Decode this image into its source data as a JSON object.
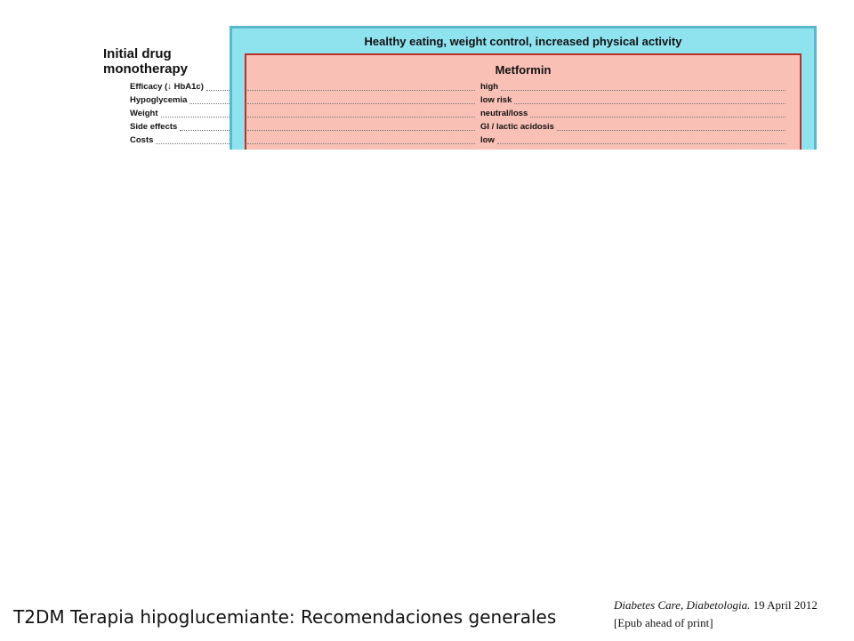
{
  "figure": {
    "side_title_line1": "Initial drug",
    "side_title_line2": "monotherapy",
    "outer_title": "Healthy eating, weight control, increased physical activity",
    "inner_title": "Metformin",
    "rows": [
      {
        "label": "Efficacy (↓ HbA1c)",
        "value": "high"
      },
      {
        "label": "Hypoglycemia",
        "value": "low risk"
      },
      {
        "label": "Weight",
        "value": "neutral/loss"
      },
      {
        "label": "Side effects",
        "value": "GI / lactic acidosis"
      },
      {
        "label": "Costs",
        "value": "low"
      }
    ]
  },
  "footer": {
    "slide_title": "T2DM Terapia hipoglucemiante: Recomendaciones generales",
    "citation_journal": "Diabetes Care, Diabetologia.",
    "citation_date": " 19 April 2012",
    "citation_note": "[Epub ahead of print]"
  },
  "colors": {
    "outer_fill": "#8fe3ef",
    "outer_border": "#57b9c9",
    "inner_fill": "#f9c0b6",
    "inner_border": "#b8322a"
  }
}
